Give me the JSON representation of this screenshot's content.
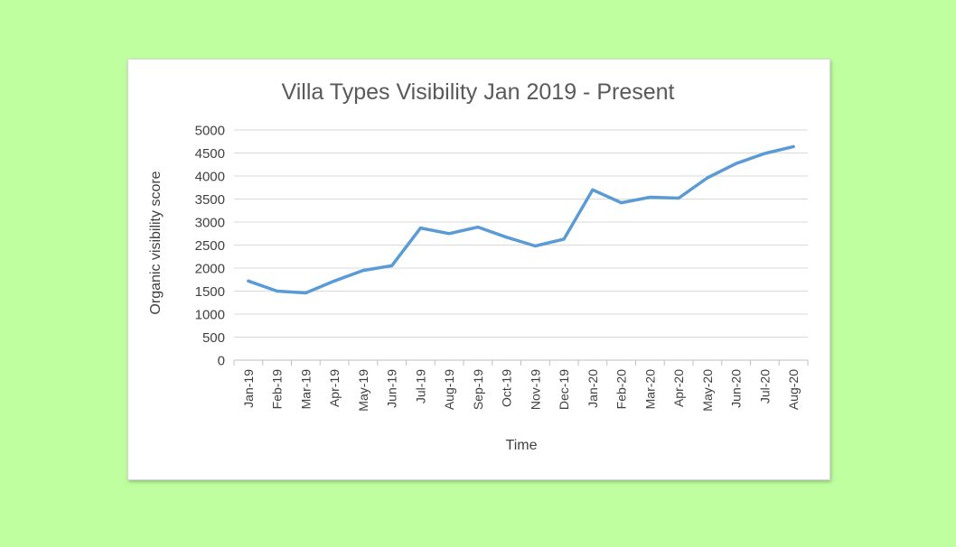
{
  "chart_data": {
    "type": "line",
    "title": "Villa Types Visibility Jan 2019 - Present",
    "xlabel": "Time",
    "ylabel": "Organic visibility score",
    "ylim": [
      0,
      5000
    ],
    "ytick_step": 500,
    "grid": true,
    "legend": "none",
    "categories": [
      "Jan-19",
      "Feb-19",
      "Mar-19",
      "Apr-19",
      "May-19",
      "Jun-19",
      "Jul-19",
      "Aug-19",
      "Sep-19",
      "Oct-19",
      "Nov-19",
      "Dec-19",
      "Jan-20",
      "Feb-20",
      "Mar-20",
      "Apr-20",
      "May-20",
      "Jun-20",
      "Jul-20",
      "Aug-20"
    ],
    "series": [
      {
        "values": [
          1720,
          1500,
          1460,
          1720,
          1950,
          2050,
          2870,
          2750,
          2890,
          2670,
          2480,
          2630,
          3700,
          3420,
          3540,
          3520,
          3960,
          4270,
          4490,
          4640
        ],
        "color": "#5b9bd5"
      }
    ],
    "colors": {
      "line": "#5b9bd5",
      "grid": "#d9d9d9",
      "axis": "#bfbfbf",
      "text": "#404040",
      "title": "#595959"
    }
  }
}
